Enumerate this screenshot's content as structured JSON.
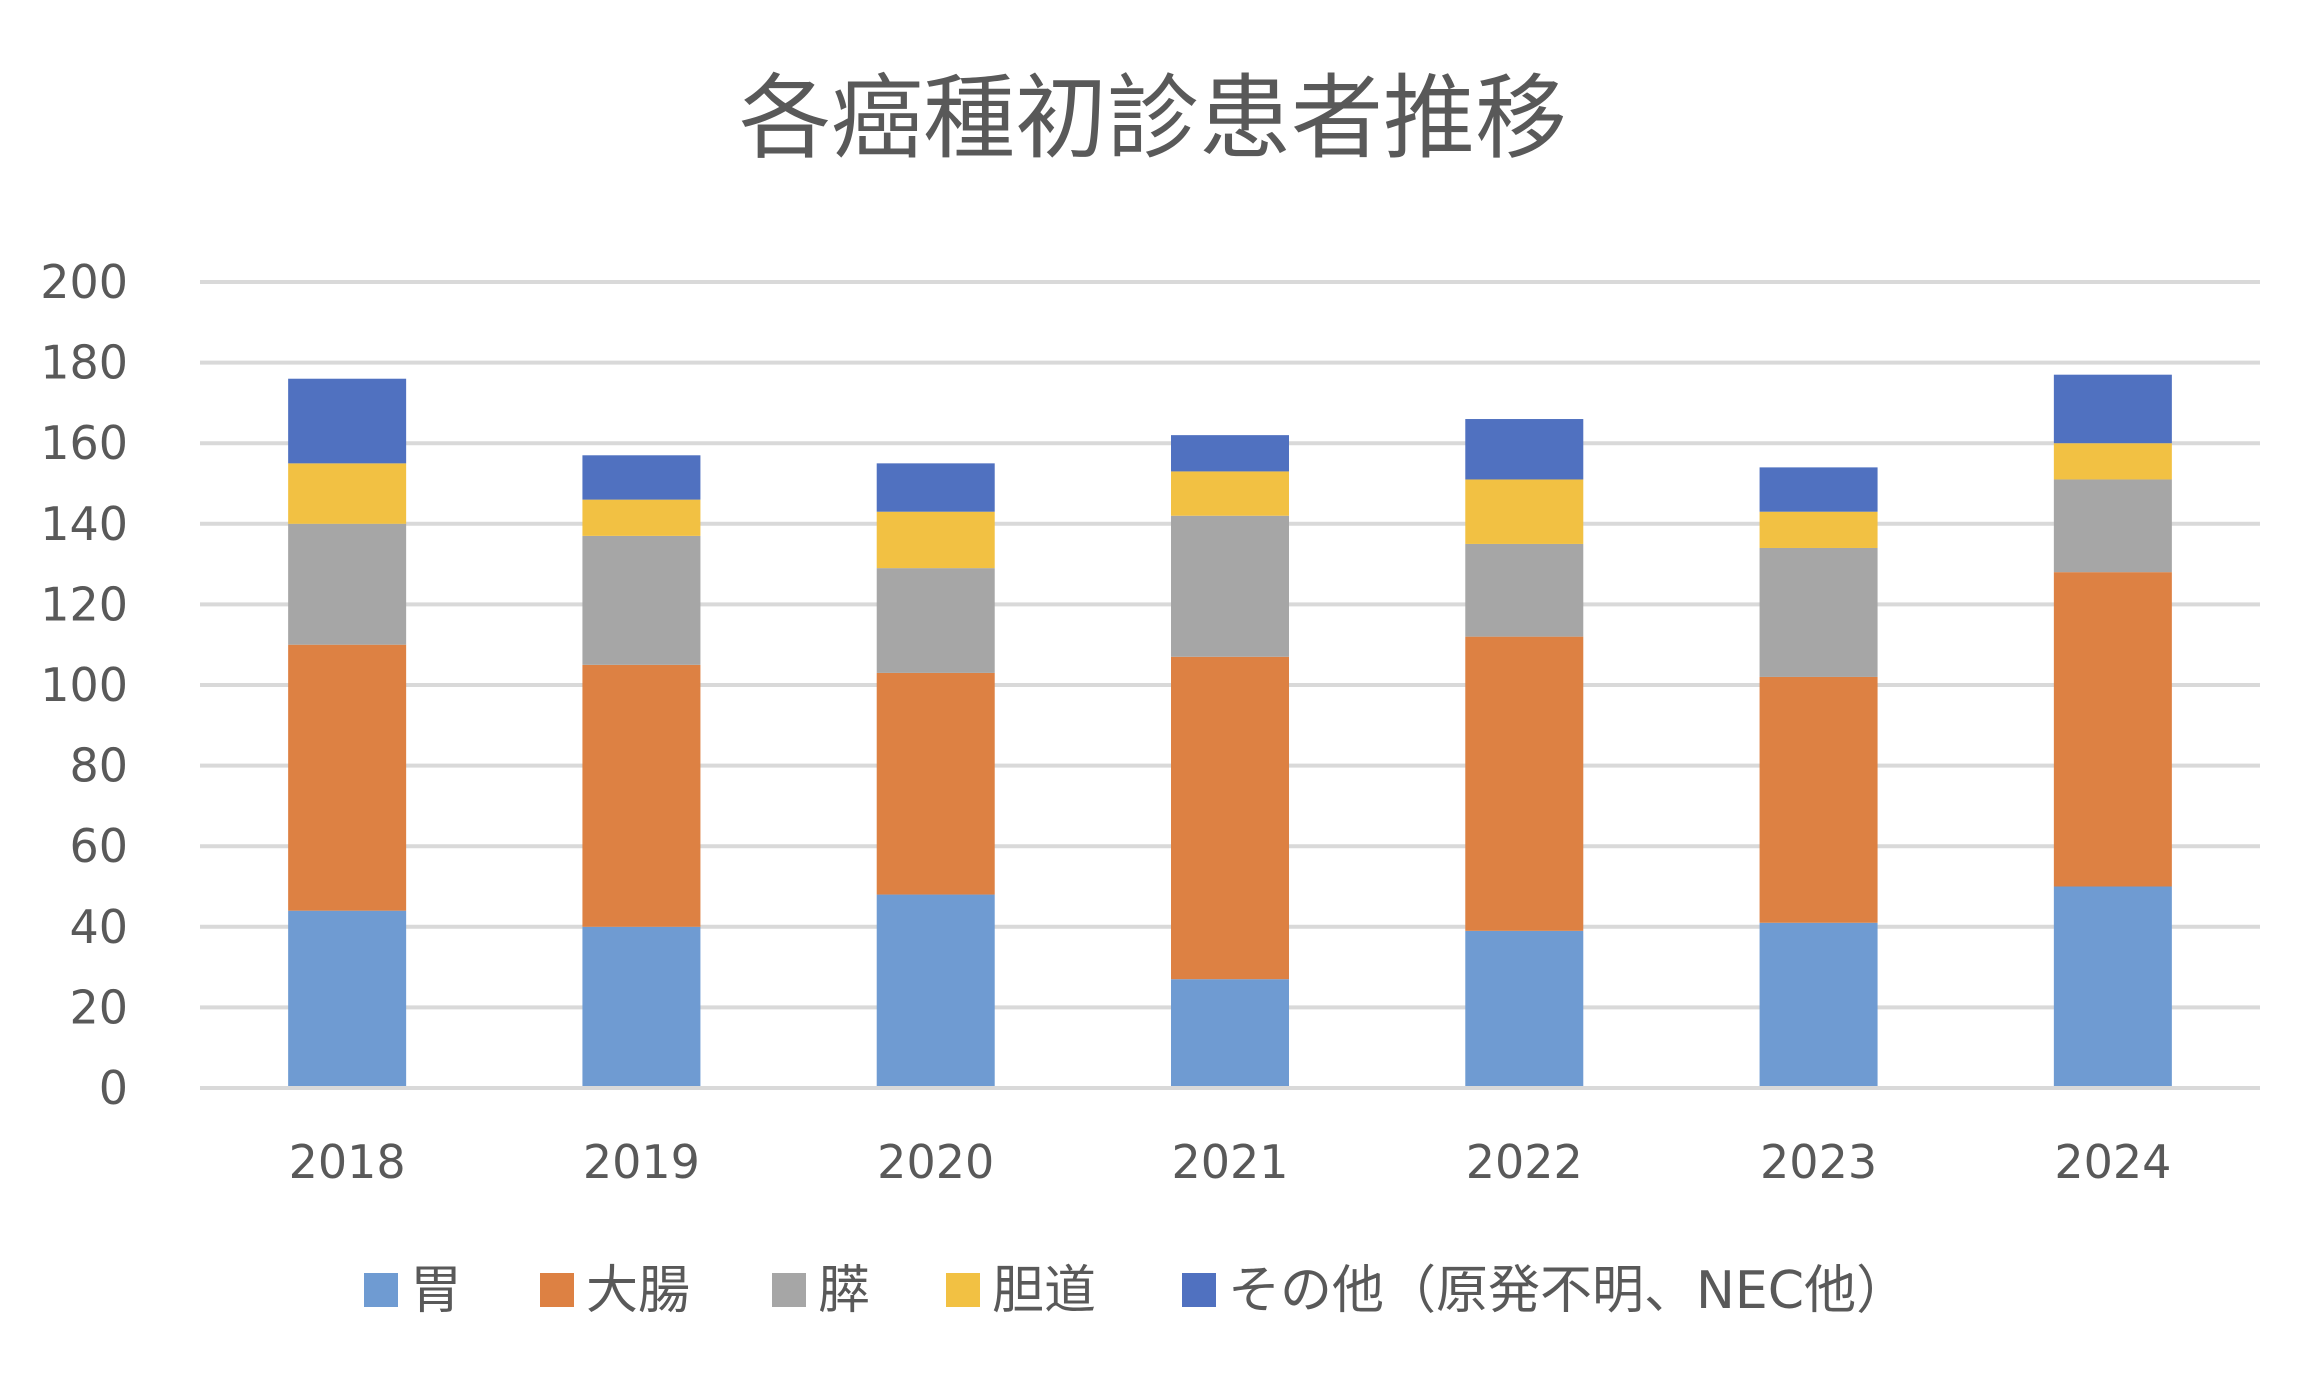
{
  "chart_data": {
    "type": "bar",
    "stacked": true,
    "title": "各癌種初診患者推移",
    "xlabel": "",
    "ylabel": "",
    "ylim": [
      0,
      200
    ],
    "y_ticks": [
      "0",
      "20",
      "40",
      "60",
      "80",
      "100",
      "120",
      "140",
      "160",
      "180",
      "200"
    ],
    "grid": true,
    "legend_position": "bottom",
    "categories": [
      "2018",
      "2019",
      "2020",
      "2021",
      "2022",
      "2023",
      "2024"
    ],
    "series": [
      {
        "name": "胃",
        "color": "#6f9bd2",
        "values": [
          44,
          40,
          48,
          27,
          39,
          41,
          50
        ]
      },
      {
        "name": "大腸",
        "color": "#dd8143",
        "values": [
          66,
          65,
          55,
          80,
          73,
          61,
          78
        ]
      },
      {
        "name": "膵",
        "color": "#a6a6a6",
        "values": [
          30,
          32,
          26,
          35,
          23,
          32,
          23
        ]
      },
      {
        "name": "胆道",
        "color": "#f2c143",
        "values": [
          15,
          9,
          14,
          11,
          16,
          9,
          9
        ]
      },
      {
        "name": "その他（原発不明、NEC他）",
        "color": "#5071c0",
        "values": [
          21,
          11,
          12,
          9,
          15,
          11,
          17
        ]
      }
    ]
  }
}
